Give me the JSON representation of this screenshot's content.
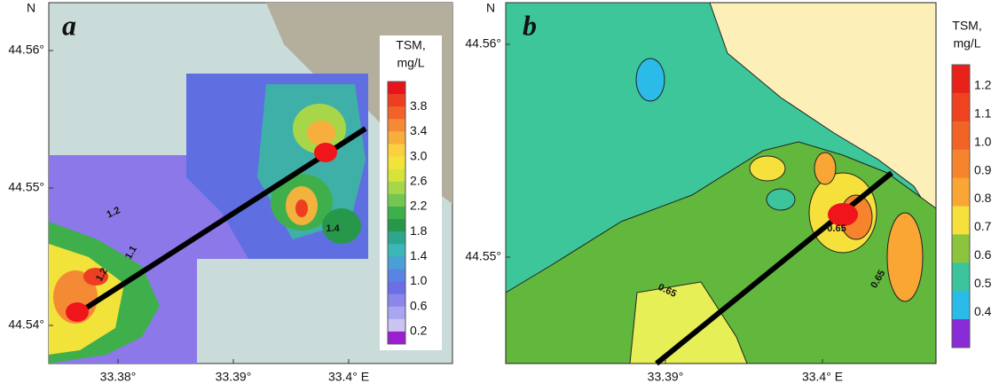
{
  "panels": [
    {
      "label": "a",
      "north": "N",
      "lat_ticks": [
        "44.56°",
        "44.55°",
        "44.54°"
      ],
      "lon_ticks": [
        "33.38°",
        "33.39°",
        "33.4° E"
      ],
      "contour_labels": [
        "1.2",
        "1.1",
        "1.2",
        "1.4"
      ],
      "colorbar": {
        "title": [
          "TSM,",
          "mg/L"
        ],
        "labels": [
          "3.8",
          "3.4",
          "3.0",
          "2.6",
          "2.2",
          "1.8",
          "1.4",
          "1.0",
          "0.6",
          "0.2"
        ],
        "colors": [
          "#e8141b",
          "#ee3e22",
          "#f2632b",
          "#f58a35",
          "#f8ae3d",
          "#fbcf3f",
          "#f2e33b",
          "#d6e33a",
          "#a7d749",
          "#74c653",
          "#3faf4c",
          "#27984a",
          "#2ea58e",
          "#3ab7b6",
          "#4aa0d4",
          "#5a84e3",
          "#6a6fe6",
          "#8a86ea",
          "#a9a6ef",
          "#cbc3f1",
          "#9a1fd0"
        ]
      }
    },
    {
      "label": "b",
      "north": "N",
      "lat_ticks": [
        "44.56°",
        "44.55°"
      ],
      "lon_ticks": [
        "33.39°",
        "33.4° E"
      ],
      "contour_labels": [
        "0.65",
        "0.65",
        "0.65"
      ],
      "colorbar": {
        "title": [
          "TSM,",
          "mg/L"
        ],
        "labels": [
          "1.2",
          "1.1",
          "1.0",
          "0.9",
          "0.8",
          "0.7",
          "0.6",
          "0.5",
          "0.4"
        ],
        "colors": [
          "#e8221b",
          "#ee4221",
          "#f26326",
          "#f5842d",
          "#f9a634",
          "#f5e03c",
          "#8cc43e",
          "#3cc49d",
          "#2bbbe8",
          "#8a2bd8"
        ]
      }
    }
  ]
}
